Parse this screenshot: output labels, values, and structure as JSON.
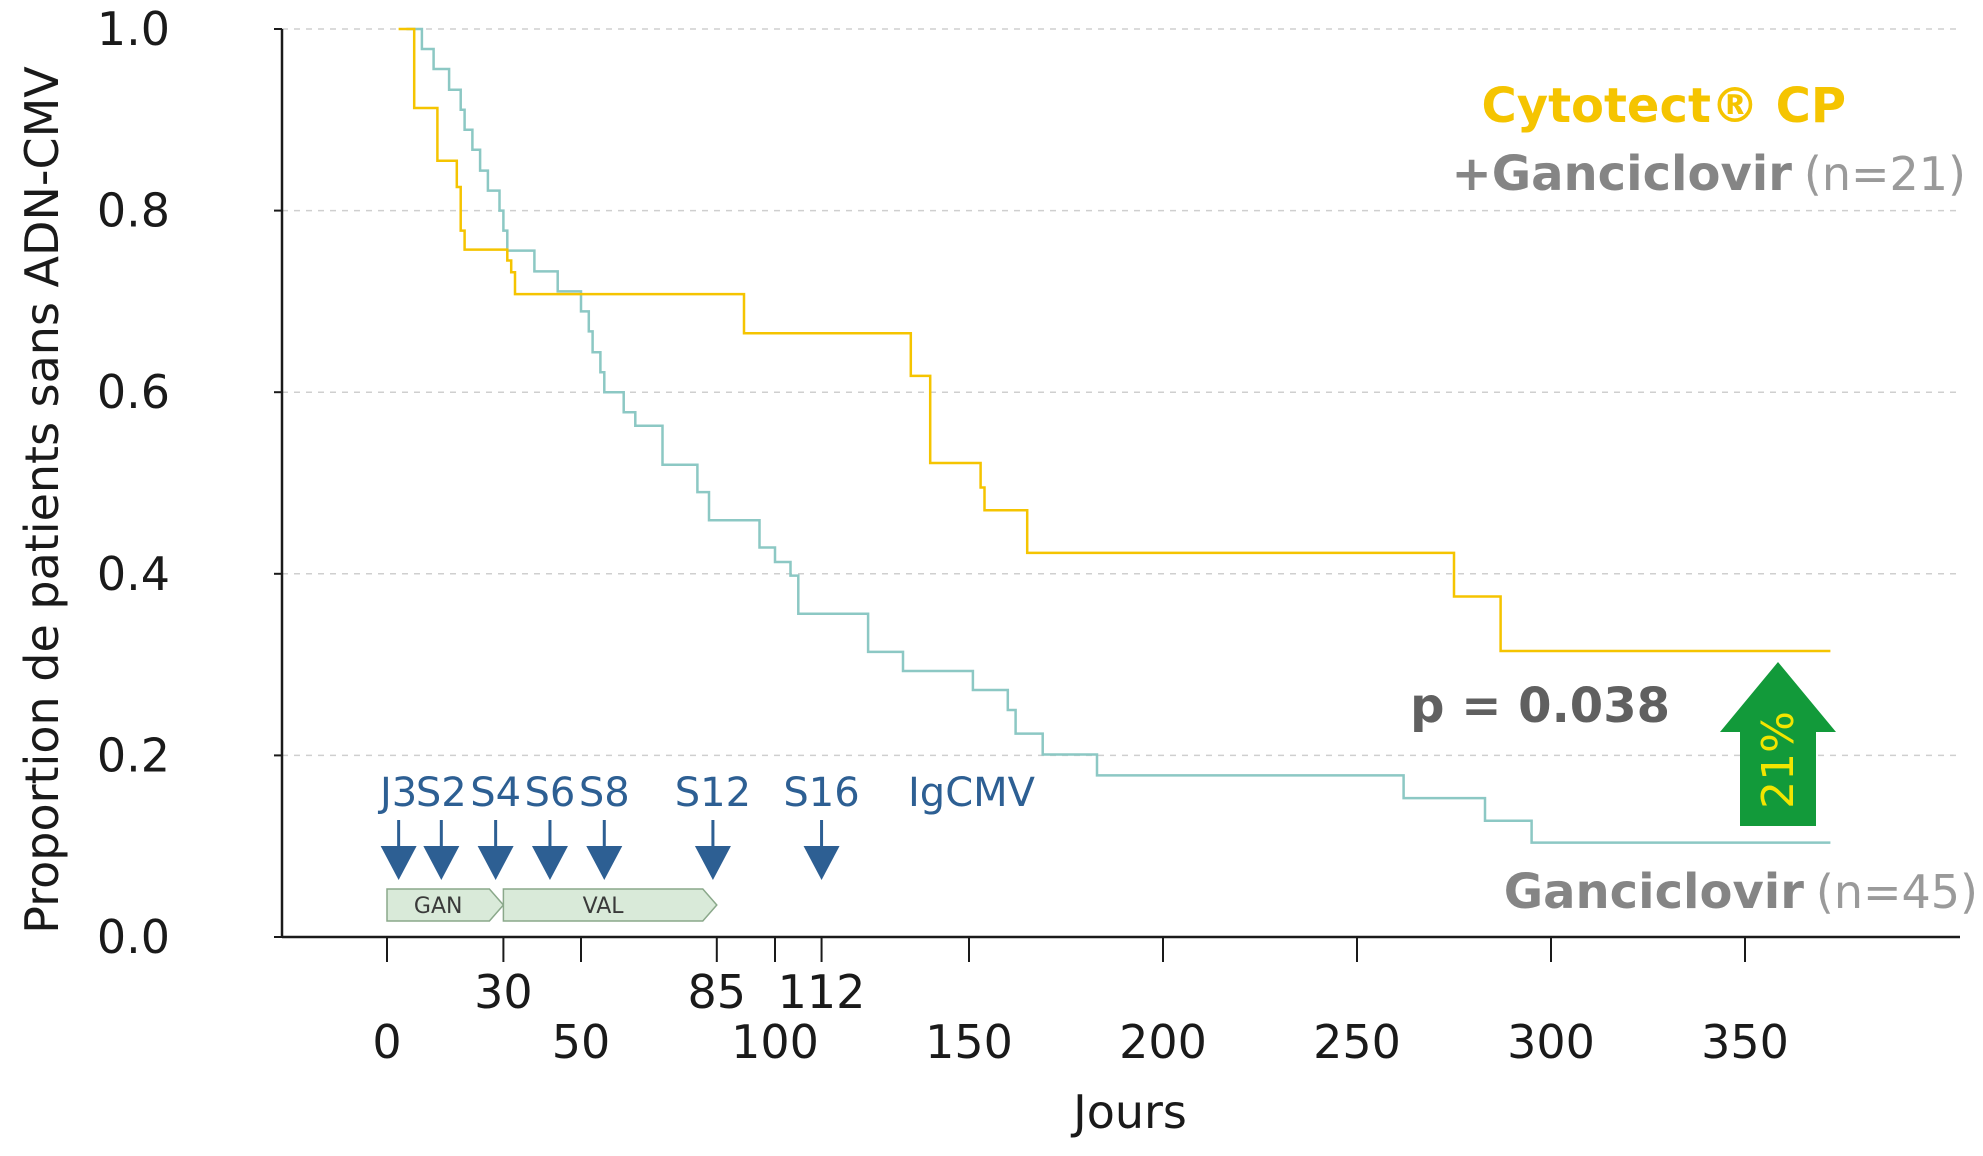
{
  "chart_data": {
    "type": "line",
    "step": true,
    "xlabel": "Jours",
    "ylabel": "Proportion de patients sans ADN-CMV",
    "xlim": [
      -25,
      375
    ],
    "ylim": [
      0,
      1
    ],
    "x_ticks": [
      0,
      50,
      100,
      150,
      200,
      250,
      300,
      350
    ],
    "x_minor_ticks": [
      30,
      85,
      112
    ],
    "y_ticks": [
      "0.0",
      "0.2",
      "0.4",
      "0.6",
      "0.8",
      "1.0"
    ],
    "grid": "horizontal dashed",
    "series": [
      {
        "name": "Cytotect® CP +Ganciclovir (n=21)",
        "color": "#f5c400",
        "points": [
          [
            3,
            1.0
          ],
          [
            7,
            1.0
          ],
          [
            7,
            0.913
          ],
          [
            13,
            0.913
          ],
          [
            13,
            0.855
          ],
          [
            18,
            0.855
          ],
          [
            18,
            0.826
          ],
          [
            19,
            0.826
          ],
          [
            19,
            0.778
          ],
          [
            20,
            0.778
          ],
          [
            20,
            0.757
          ],
          [
            31,
            0.757
          ],
          [
            31,
            0.745
          ],
          [
            32,
            0.745
          ],
          [
            32,
            0.732
          ],
          [
            33,
            0.732
          ],
          [
            33,
            0.708
          ],
          [
            92,
            0.708
          ],
          [
            92,
            0.665
          ],
          [
            135,
            0.665
          ],
          [
            135,
            0.618
          ],
          [
            140,
            0.618
          ],
          [
            140,
            0.522
          ],
          [
            153,
            0.522
          ],
          [
            153,
            0.495
          ],
          [
            154,
            0.495
          ],
          [
            154,
            0.47
          ],
          [
            165,
            0.47
          ],
          [
            165,
            0.423
          ],
          [
            275,
            0.423
          ],
          [
            275,
            0.375
          ],
          [
            287,
            0.375
          ],
          [
            287,
            0.315
          ],
          [
            372,
            0.315
          ]
        ]
      },
      {
        "name": "Ganciclovir (n=45)",
        "color": "#8cc8c4",
        "points": [
          [
            5,
            1.0
          ],
          [
            9,
            1.0
          ],
          [
            9,
            0.978
          ],
          [
            12,
            0.978
          ],
          [
            12,
            0.956
          ],
          [
            16,
            0.956
          ],
          [
            16,
            0.933
          ],
          [
            19,
            0.933
          ],
          [
            19,
            0.911
          ],
          [
            20,
            0.911
          ],
          [
            20,
            0.889
          ],
          [
            22,
            0.889
          ],
          [
            22,
            0.867
          ],
          [
            24,
            0.867
          ],
          [
            24,
            0.844
          ],
          [
            26,
            0.844
          ],
          [
            26,
            0.822
          ],
          [
            29,
            0.822
          ],
          [
            29,
            0.8
          ],
          [
            30,
            0.8
          ],
          [
            30,
            0.778
          ],
          [
            31,
            0.778
          ],
          [
            31,
            0.756
          ],
          [
            38,
            0.756
          ],
          [
            38,
            0.733
          ],
          [
            44,
            0.733
          ],
          [
            44,
            0.711
          ],
          [
            50,
            0.711
          ],
          [
            50,
            0.689
          ],
          [
            52,
            0.689
          ],
          [
            52,
            0.667
          ],
          [
            53,
            0.667
          ],
          [
            53,
            0.644
          ],
          [
            55,
            0.644
          ],
          [
            55,
            0.622
          ],
          [
            56,
            0.622
          ],
          [
            56,
            0.6
          ],
          [
            61,
            0.6
          ],
          [
            61,
            0.578
          ],
          [
            64,
            0.578
          ],
          [
            64,
            0.563
          ],
          [
            71,
            0.563
          ],
          [
            71,
            0.52
          ],
          [
            80,
            0.52
          ],
          [
            80,
            0.49
          ],
          [
            83,
            0.49
          ],
          [
            83,
            0.459
          ],
          [
            96,
            0.459
          ],
          [
            96,
            0.429
          ],
          [
            100,
            0.429
          ],
          [
            100,
            0.413
          ],
          [
            104,
            0.413
          ],
          [
            104,
            0.398
          ],
          [
            106,
            0.398
          ],
          [
            106,
            0.356
          ],
          [
            124,
            0.356
          ],
          [
            124,
            0.314
          ],
          [
            133,
            0.314
          ],
          [
            133,
            0.293
          ],
          [
            151,
            0.293
          ],
          [
            151,
            0.272
          ],
          [
            160,
            0.272
          ],
          [
            160,
            0.25
          ],
          [
            162,
            0.25
          ],
          [
            162,
            0.224
          ],
          [
            169,
            0.224
          ],
          [
            169,
            0.201
          ],
          [
            183,
            0.201
          ],
          [
            183,
            0.178
          ],
          [
            262,
            0.178
          ],
          [
            262,
            0.153
          ],
          [
            283,
            0.153
          ],
          [
            283,
            0.128
          ],
          [
            295,
            0.128
          ],
          [
            295,
            0.104
          ],
          [
            372,
            0.104
          ]
        ]
      }
    ],
    "schedule_markers": [
      {
        "label": "J3",
        "x": 3
      },
      {
        "label": "S2",
        "x": 14
      },
      {
        "label": "S4",
        "x": 28
      },
      {
        "label": "S6",
        "x": 42
      },
      {
        "label": "S8",
        "x": 56
      },
      {
        "label": "S12",
        "x": 84
      },
      {
        "label": "S16",
        "x": 112
      }
    ],
    "schedule_title": "IgCMV",
    "phases": [
      {
        "label": "GAN",
        "x_start": 0,
        "x_end": 30
      },
      {
        "label": "VAL",
        "x_start": 30,
        "x_end": 85
      }
    ],
    "legend": {
      "cytotect_name": "Cytotect® CP",
      "cytotect_combo": "+Ganciclovir",
      "cytotect_n": "(n=21)",
      "ganciclovir_name": "Ganciclovir",
      "ganciclovir_n": "(n=45)"
    },
    "p_value": "p = 0.038",
    "difference_label": "21%",
    "colors": {
      "cytotect": "#f5c400",
      "ganciclovir": "#8cc8c4",
      "marker": "#2d5f93",
      "difference_arrow": "#129a3a",
      "phase_fill": "#d9ead9"
    }
  }
}
